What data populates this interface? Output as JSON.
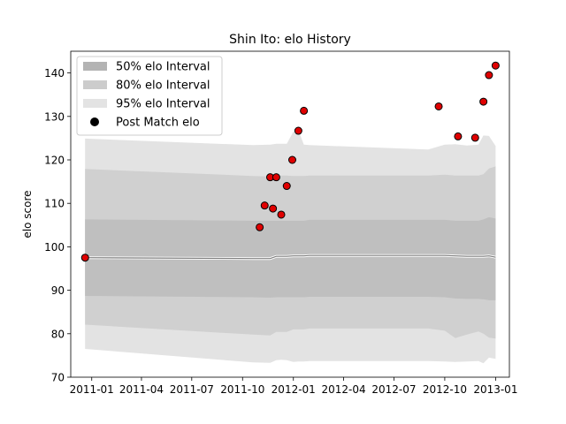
{
  "chart_data": {
    "type": "line",
    "title": "Shin Ito: elo History",
    "xlabel": "",
    "ylabel": "elo score",
    "ylim": [
      70,
      145
    ],
    "xlim": [
      "2010-11-24",
      "2013-01-26"
    ],
    "x_ticks": [
      "2011-01",
      "2011-04",
      "2011-07",
      "2011-10",
      "2012-01",
      "2012-04",
      "2012-07",
      "2012-10",
      "2013-01"
    ],
    "y_ticks": [
      70,
      80,
      90,
      100,
      110,
      120,
      130,
      140
    ],
    "grid": false,
    "legend_position": "top-left",
    "legend": [
      {
        "label": "50% elo Interval",
        "color": "#b3b3b3"
      },
      {
        "label": "80% elo Interval",
        "color": "#cccccc"
      },
      {
        "label": "95% elo Interval",
        "color": "#e3e3e3"
      },
      {
        "label": "Post Match elo",
        "color": "#000000"
      }
    ],
    "colors": {
      "band_50": "#bfbfbf",
      "band_80": "#d0d0d0",
      "band_95": "#e3e3e3",
      "mean_line": "#808080",
      "point_fill": "#e00000",
      "point_edge": "#000000"
    },
    "bands": {
      "dates": [
        "2010-12-20",
        "2011-10-20",
        "2011-11-20",
        "2011-12-01",
        "2011-12-10",
        "2011-12-20",
        "2012-01-01",
        "2012-01-10",
        "2012-01-20",
        "2012-01-30",
        "2012-09-01",
        "2012-10-01",
        "2012-10-20",
        "2012-11-10",
        "2012-12-01",
        "2012-12-10",
        "2012-12-20",
        "2013-01-01"
      ],
      "mean": [
        97.5,
        97.3,
        97.3,
        97.8,
        97.8,
        97.8,
        97.9,
        97.9,
        97.9,
        98.0,
        98.0,
        98.0,
        97.9,
        97.8,
        97.8,
        97.8,
        97.9,
        97.6
      ],
      "p50_lo": [
        88.7,
        88.4,
        88.3,
        88.4,
        88.4,
        88.4,
        88.4,
        88.4,
        88.4,
        88.5,
        88.5,
        88.4,
        88.1,
        88.0,
        88.0,
        87.9,
        87.7,
        87.7
      ],
      "p50_hi": [
        106.3,
        106.0,
        106.0,
        106.0,
        106.0,
        106.0,
        106.0,
        106.0,
        106.0,
        106.2,
        106.2,
        106.2,
        106.0,
        106.0,
        106.0,
        106.3,
        106.8,
        106.5
      ],
      "p80_lo": [
        82.1,
        79.8,
        79.6,
        80.4,
        80.4,
        80.4,
        81.0,
        81.0,
        81.0,
        81.2,
        81.2,
        80.7,
        79.0,
        79.8,
        80.5,
        80.0,
        79.1,
        78.9
      ],
      "p80_hi": [
        117.9,
        116.3,
        116.2,
        116.4,
        116.4,
        116.4,
        116.3,
        116.3,
        116.3,
        116.4,
        116.4,
        116.6,
        116.4,
        116.4,
        116.4,
        116.7,
        118.0,
        118.5
      ],
      "p95_lo": [
        76.5,
        73.4,
        73.3,
        73.9,
        74.0,
        73.9,
        73.5,
        73.6,
        73.6,
        73.7,
        73.7,
        73.6,
        73.5,
        73.6,
        73.7,
        73.2,
        74.5,
        74.2
      ],
      "p95_hi": [
        124.9,
        123.4,
        123.5,
        123.7,
        123.7,
        123.7,
        126.5,
        126.8,
        123.5,
        123.4,
        122.4,
        123.5,
        123.6,
        123.3,
        123.5,
        125.6,
        125.5,
        123.2
      ]
    },
    "points": {
      "dates": [
        "2010-12-20",
        "2011-11-01",
        "2011-11-10",
        "2011-11-20",
        "2011-11-25",
        "2011-12-01",
        "2011-12-10",
        "2011-12-20",
        "2011-12-30",
        "2012-01-10",
        "2012-01-20",
        "2012-09-20",
        "2012-10-25",
        "2012-11-25",
        "2012-12-10",
        "2012-12-20",
        "2013-01-01"
      ],
      "values": [
        97.5,
        104.5,
        109.5,
        116.0,
        108.8,
        116.0,
        107.4,
        114.0,
        120.0,
        126.7,
        131.3,
        132.3,
        125.4,
        125.1,
        133.4,
        139.5,
        141.7
      ]
    }
  }
}
